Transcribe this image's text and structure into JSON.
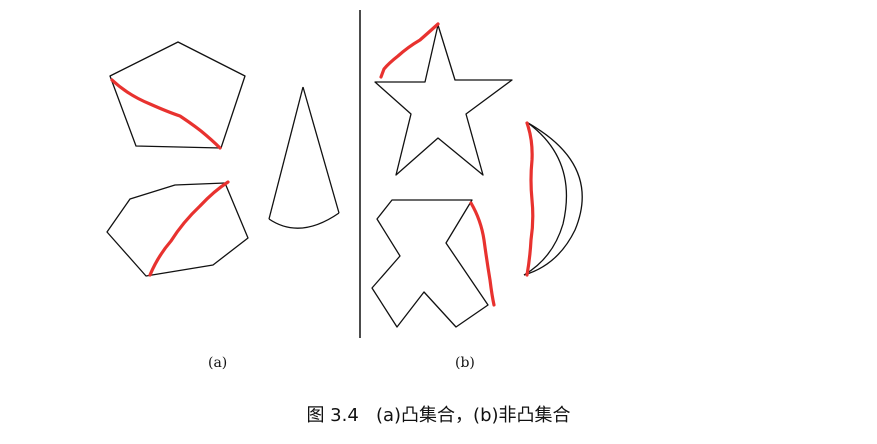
{
  "diagram": {
    "panel_a_label": "(a)",
    "panel_b_label": "(b)",
    "caption_number": "图 3.4",
    "caption_text": "(a)凸集合，(b)非凸集合",
    "colors": {
      "shape_outline": "#111111",
      "segment": "#e8322f"
    },
    "panel_a_shapes": [
      "pentagon",
      "hexagon",
      "cone"
    ],
    "panel_b_shapes": [
      "star",
      "cross-shape",
      "crescent"
    ]
  }
}
